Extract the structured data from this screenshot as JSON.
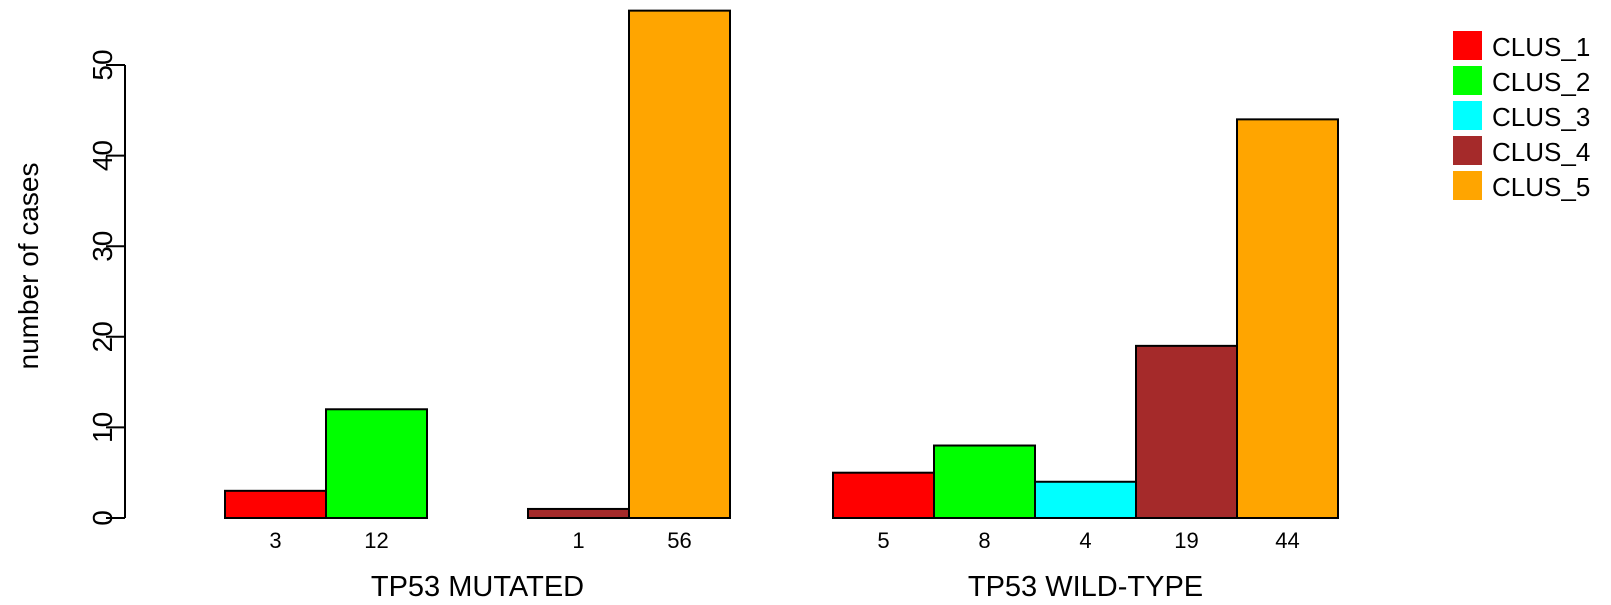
{
  "chart_data": {
    "type": "bar",
    "ylabel": "number of cases",
    "ylim": [
      0,
      56
    ],
    "yticks": [
      0,
      10,
      20,
      30,
      40,
      50
    ],
    "grid": false,
    "legend_position": "top-right",
    "groups": [
      "TP53 MUTATED",
      "TP53 WILD-TYPE"
    ],
    "series": [
      {
        "name": "CLUS_1",
        "color": "#FF0000",
        "values": [
          3,
          5
        ]
      },
      {
        "name": "CLUS_2",
        "color": "#00FF00",
        "values": [
          12,
          8
        ]
      },
      {
        "name": "CLUS_3",
        "color": "#00FFFF",
        "values": [
          0,
          4
        ]
      },
      {
        "name": "CLUS_4",
        "color": "#A52A2A",
        "values": [
          1,
          19
        ]
      },
      {
        "name": "CLUS_5",
        "color": "#FFA500",
        "values": [
          56,
          44
        ]
      }
    ],
    "bar_labels": [
      [
        "3",
        "12",
        "",
        "1",
        "56"
      ],
      [
        "5",
        "8",
        "4",
        "19",
        "44"
      ]
    ]
  }
}
